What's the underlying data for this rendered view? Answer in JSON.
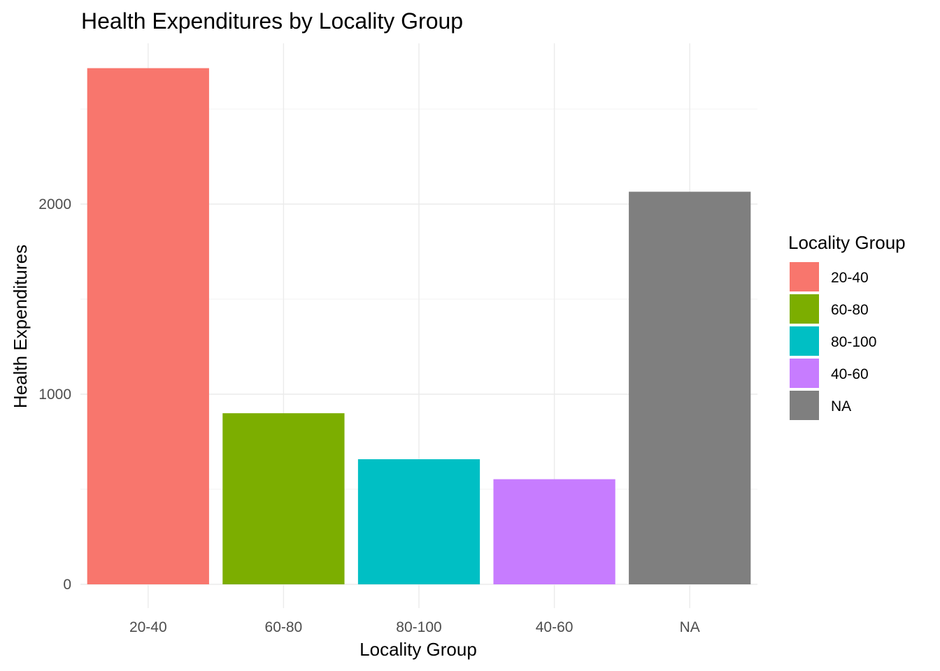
{
  "chart_data": {
    "type": "bar",
    "title": "Health Expenditures by Locality Group",
    "xlabel": "Locality Group",
    "ylabel": "Health Expenditures",
    "categories": [
      "20-40",
      "60-80",
      "80-100",
      "40-60",
      "NA"
    ],
    "values": [
      2715,
      900,
      658,
      553,
      2065
    ],
    "colors": [
      "#F8766D",
      "#7CAE00",
      "#00BFC4",
      "#C77CFF",
      "#7F7F7F"
    ],
    "ylim": [
      -100,
      2850
    ],
    "y_ticks": [
      0,
      1000,
      2000
    ],
    "y_minor_ticks": [
      500,
      1500,
      2500
    ],
    "grid": true,
    "legend": {
      "title": "Locality Group",
      "position": "right",
      "entries": [
        "20-40",
        "60-80",
        "80-100",
        "40-60",
        "NA"
      ]
    }
  }
}
